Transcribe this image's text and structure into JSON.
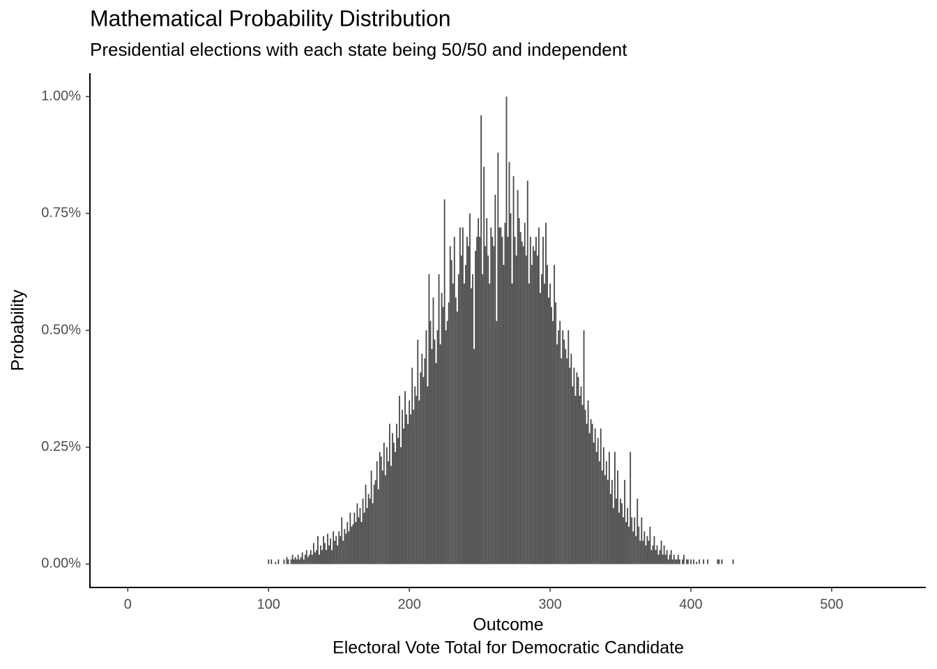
{
  "chart_data": {
    "type": "bar",
    "title": "Mathematical Probability Distribution",
    "subtitle": "Presidential elections with each state being 50/50 and independent",
    "xlabel": [
      "Outcome",
      "Electoral Vote Total for Democratic Candidate"
    ],
    "ylabel": "Probability",
    "color": "#474747",
    "xlim": [
      -26.9,
      566.9
    ],
    "xticks": [
      0,
      100,
      200,
      300,
      400,
      500
    ],
    "ylim": [
      -0.05,
      1.05
    ],
    "yticks": [
      {
        "value": 0,
        "label": "0.00%"
      },
      {
        "value": 0.25,
        "label": "0.25%"
      },
      {
        "value": 0.5,
        "label": "0.50%"
      },
      {
        "value": 0.75,
        "label": "0.75%"
      },
      {
        "value": 1,
        "label": "1.00%"
      }
    ],
    "x": [
      100,
      101,
      102,
      103,
      104,
      105,
      106,
      107,
      108,
      109,
      110,
      111,
      112,
      113,
      114,
      115,
      116,
      117,
      118,
      119,
      120,
      121,
      122,
      123,
      124,
      125,
      126,
      127,
      128,
      129,
      130,
      131,
      132,
      133,
      134,
      135,
      136,
      137,
      138,
      139,
      140,
      141,
      142,
      143,
      144,
      145,
      146,
      147,
      148,
      149,
      150,
      151,
      152,
      153,
      154,
      155,
      156,
      157,
      158,
      159,
      160,
      161,
      162,
      163,
      164,
      165,
      166,
      167,
      168,
      169,
      170,
      171,
      172,
      173,
      174,
      175,
      176,
      177,
      178,
      179,
      180,
      181,
      182,
      183,
      184,
      185,
      186,
      187,
      188,
      189,
      190,
      191,
      192,
      193,
      194,
      195,
      196,
      197,
      198,
      199,
      200,
      201,
      202,
      203,
      204,
      205,
      206,
      207,
      208,
      209,
      210,
      211,
      212,
      213,
      214,
      215,
      216,
      217,
      218,
      219,
      220,
      221,
      222,
      223,
      224,
      225,
      226,
      227,
      228,
      229,
      230,
      231,
      232,
      233,
      234,
      235,
      236,
      237,
      238,
      239,
      240,
      241,
      242,
      243,
      244,
      245,
      246,
      247,
      248,
      249,
      250,
      251,
      252,
      253,
      254,
      255,
      256,
      257,
      258,
      259,
      260,
      261,
      262,
      263,
      264,
      265,
      266,
      267,
      268,
      269,
      270,
      271,
      272,
      273,
      274,
      275,
      276,
      277,
      278,
      279,
      280,
      281,
      282,
      283,
      284,
      285,
      286,
      287,
      288,
      289,
      290,
      291,
      292,
      293,
      294,
      295,
      296,
      297,
      298,
      299,
      300,
      301,
      302,
      303,
      304,
      305,
      306,
      307,
      308,
      309,
      310,
      311,
      312,
      313,
      314,
      315,
      316,
      317,
      318,
      319,
      320,
      321,
      322,
      323,
      324,
      325,
      326,
      327,
      328,
      329,
      330,
      331,
      332,
      333,
      334,
      335,
      336,
      337,
      338,
      339,
      340,
      341,
      342,
      343,
      344,
      345,
      346,
      347,
      348,
      349,
      350,
      351,
      352,
      353,
      354,
      355,
      356,
      357,
      358,
      359,
      360,
      361,
      362,
      363,
      364,
      365,
      366,
      367,
      368,
      369,
      370,
      371,
      372,
      373,
      374,
      375,
      376,
      377,
      378,
      379,
      380,
      381,
      382,
      383,
      384,
      385,
      386,
      387,
      388,
      389,
      390,
      391,
      392,
      393,
      394,
      395,
      396,
      397,
      398,
      399,
      400,
      401,
      402,
      403,
      404,
      405,
      406,
      407,
      408,
      409,
      410,
      411,
      412,
      413,
      414,
      415,
      416,
      417,
      418,
      419,
      420,
      421,
      422,
      423,
      424,
      425,
      426,
      427,
      428,
      429,
      430
    ],
    "values": [
      0.01,
      0,
      0.01,
      0,
      0,
      0.005,
      0,
      0.01,
      0,
      0,
      0,
      0.01,
      0,
      0.015,
      0.01,
      0,
      0.01,
      0.02,
      0.01,
      0.015,
      0.01,
      0.02,
      0.01,
      0.015,
      0.025,
      0.01,
      0.02,
      0.03,
      0.015,
      0.02,
      0.03,
      0.02,
      0.045,
      0.025,
      0.03,
      0.06,
      0.02,
      0.04,
      0.03,
      0.06,
      0.045,
      0.03,
      0.065,
      0.04,
      0.055,
      0.03,
      0.07,
      0.05,
      0.06,
      0.04,
      0.07,
      0.06,
      0.1,
      0.05,
      0.075,
      0.065,
      0.09,
      0.07,
      0.11,
      0.08,
      0.085,
      0.11,
      0.09,
      0.13,
      0.1,
      0.12,
      0.09,
      0.14,
      0.11,
      0.17,
      0.12,
      0.15,
      0.14,
      0.2,
      0.13,
      0.17,
      0.18,
      0.22,
      0.16,
      0.24,
      0.23,
      0.2,
      0.26,
      0.19,
      0.25,
      0.22,
      0.3,
      0.21,
      0.28,
      0.26,
      0.24,
      0.3,
      0.27,
      0.36,
      0.25,
      0.33,
      0.29,
      0.37,
      0.32,
      0.3,
      0.35,
      0.32,
      0.42,
      0.33,
      0.38,
      0.36,
      0.48,
      0.35,
      0.41,
      0.45,
      0.4,
      0.44,
      0.5,
      0.38,
      0.62,
      0.52,
      0.46,
      0.57,
      0.48,
      0.43,
      0.5,
      0.62,
      0.47,
      0.58,
      0.55,
      0.78,
      0.5,
      0.52,
      0.56,
      0.68,
      0.65,
      0.6,
      0.7,
      0.57,
      0.54,
      0.62,
      0.72,
      0.66,
      0.72,
      0.6,
      0.64,
      0.7,
      0.68,
      0.75,
      0.59,
      0.62,
      0.46,
      0.67,
      0.7,
      0.74,
      0.7,
      0.96,
      0.62,
      0.85,
      0.68,
      0.74,
      0.66,
      0.6,
      0.72,
      0.7,
      0.68,
      0.79,
      0.52,
      0.88,
      0.72,
      0.72,
      0.7,
      0.64,
      0.73,
      1.0,
      0.7,
      0.86,
      0.75,
      0.6,
      0.83,
      0.7,
      0.66,
      0.8,
      0.74,
      0.71,
      0.69,
      0.68,
      0.73,
      0.66,
      0.82,
      0.6,
      0.7,
      0.64,
      0.68,
      0.67,
      0.7,
      0.66,
      0.72,
      0.58,
      0.62,
      0.7,
      0.6,
      0.73,
      0.64,
      0.57,
      0.6,
      0.55,
      0.52,
      0.64,
      0.56,
      0.47,
      0.5,
      0.52,
      0.44,
      0.5,
      0.48,
      0.46,
      0.44,
      0.5,
      0.42,
      0.45,
      0.38,
      0.42,
      0.36,
      0.41,
      0.4,
      0.36,
      0.38,
      0.34,
      0.5,
      0.33,
      0.3,
      0.35,
      0.28,
      0.31,
      0.3,
      0.26,
      0.29,
      0.24,
      0.27,
      0.22,
      0.29,
      0.2,
      0.25,
      0.19,
      0.22,
      0.18,
      0.24,
      0.15,
      0.18,
      0.12,
      0.24,
      0.14,
      0.2,
      0.11,
      0.14,
      0.13,
      0.1,
      0.18,
      0.09,
      0.12,
      0.08,
      0.24,
      0.1,
      0.07,
      0.1,
      0.06,
      0.14,
      0.08,
      0.05,
      0.1,
      0.05,
      0.07,
      0.04,
      0.06,
      0.05,
      0.08,
      0.03,
      0.04,
      0.06,
      0.03,
      0.04,
      0.02,
      0.03,
      0.05,
      0.02,
      0.04,
      0.02,
      0.03,
      0.01,
      0.02,
      0.03,
      0.01,
      0.02,
      0.01,
      0.01,
      0.02,
      0.01,
      0,
      0.01,
      0.02,
      0,
      0.01,
      0.01,
      0,
      0.01,
      0,
      0.01,
      0,
      0.005,
      0,
      0.01,
      0,
      0,
      0.01,
      0,
      0,
      0.01,
      0,
      0,
      0,
      0,
      0,
      0,
      0.01,
      0.01,
      0,
      0.01,
      0,
      0,
      0,
      0,
      0,
      0,
      0,
      0.01
    ]
  }
}
